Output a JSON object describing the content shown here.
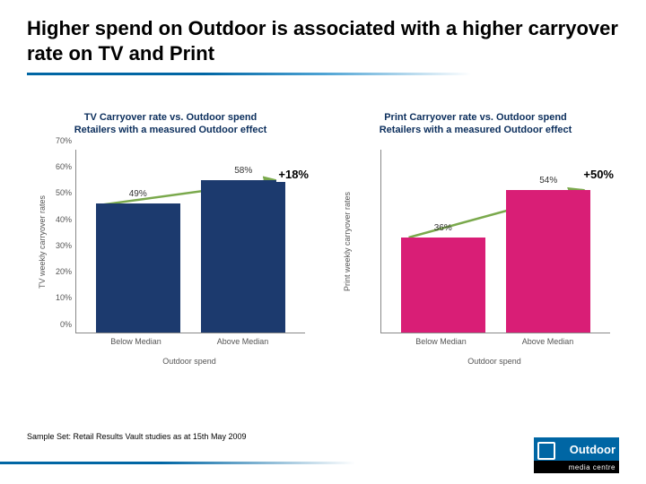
{
  "title": "Higher spend on Outdoor is associated with a higher carryover rate on TV and Print",
  "footnote": "Sample Set: Retail Results Vault studies as at 15th May 2009",
  "logo": {
    "brand": "Outdoor",
    "sub": "media centre"
  },
  "charts": [
    {
      "title": "TV Carryover rate vs. Outdoor spend\nRetailers with a measured Outdoor effect",
      "y_label": "TV weekly carryover rates",
      "x_label": "Outdoor spend",
      "ylim": [
        0,
        70
      ],
      "y_ticks": [
        0,
        10,
        20,
        30,
        40,
        50,
        60,
        70
      ],
      "y_tick_labels": [
        "0%",
        "10%",
        "20%",
        "30%",
        "40%",
        "50%",
        "60%",
        "70%"
      ],
      "categories": [
        "Below Median",
        "Above Median"
      ],
      "values": [
        49,
        58
      ],
      "value_labels": [
        "49%",
        "58%"
      ],
      "bar_color": "#1c3a6e",
      "delta_label": "+18%",
      "trend_color": "#7aa94c",
      "grid_color": "#cccccc",
      "background_color": "#ffffff"
    },
    {
      "title": "Print Carryover rate vs. Outdoor spend\nRetailers with a measured Outdoor effect",
      "y_label": "Print weekly carryover rates",
      "x_label": "Outdoor spend",
      "ylim": [
        0,
        70
      ],
      "y_ticks": [
        0,
        10,
        20,
        30,
        40,
        50,
        60,
        70
      ],
      "y_tick_labels": [
        "",
        "",
        "",
        "",
        "",
        "",
        "",
        ""
      ],
      "categories": [
        "Below Median",
        "Above Median"
      ],
      "values": [
        36,
        54
      ],
      "value_labels": [
        "36%",
        "54%"
      ],
      "bar_color": "#d91e76",
      "delta_label": "+50%",
      "trend_color": "#7aa94c",
      "grid_color": "#cccccc",
      "background_color": "#ffffff"
    }
  ]
}
